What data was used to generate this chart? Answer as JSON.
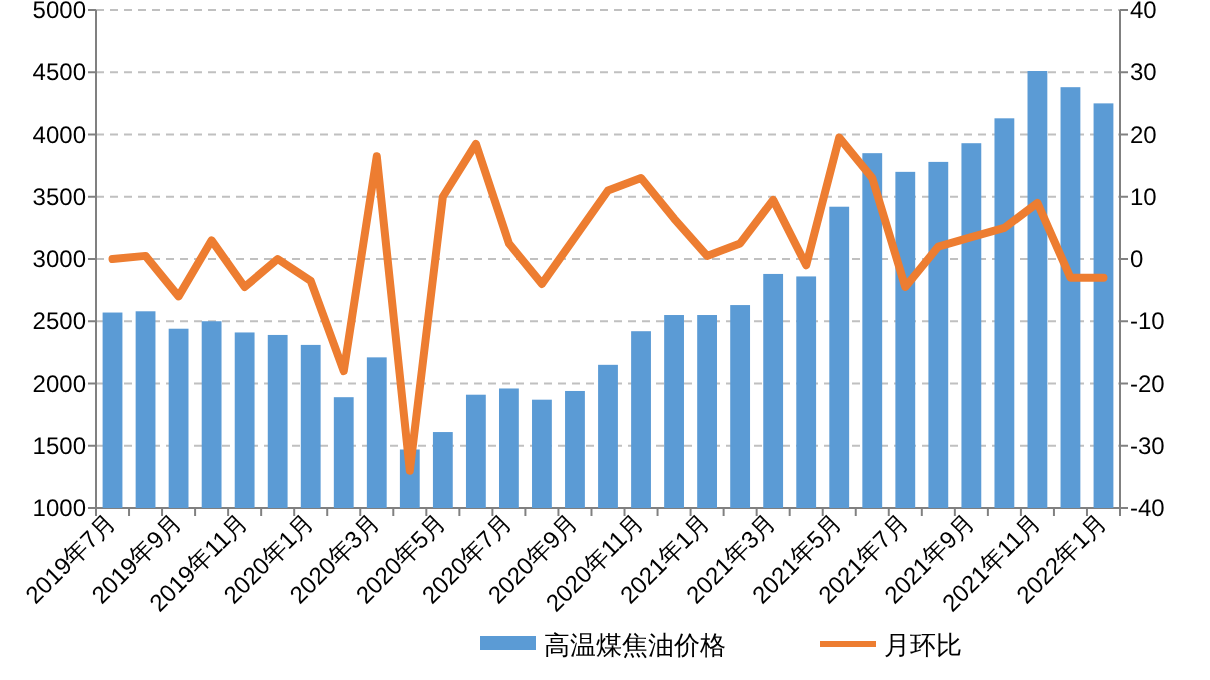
{
  "chart_data": {
    "type": "bar",
    "categories": [
      "2019年7月",
      null,
      "2019年9月",
      null,
      "2019年11月",
      null,
      "2020年1月",
      null,
      "2020年3月",
      null,
      "2020年5月",
      null,
      "2020年7月",
      null,
      "2020年9月",
      null,
      "2020年11月",
      null,
      "2021年1月",
      null,
      "2021年3月",
      null,
      "2021年5月",
      null,
      "2021年7月",
      null,
      "2021年9月",
      null,
      "2021年11月",
      null,
      "2022年1月"
    ],
    "series": [
      {
        "name": "高温煤焦油价格",
        "color": "#5b9bd5",
        "values": [
          2570,
          2580,
          2440,
          2500,
          2410,
          2390,
          2310,
          1890,
          2210,
          1470,
          1610,
          1910,
          1960,
          1870,
          1940,
          2150,
          2420,
          2550,
          2550,
          2630,
          2880,
          2860,
          3420,
          3850,
          3700,
          3780,
          3930,
          4130,
          4510,
          4380,
          4250
        ]
      },
      {
        "name": "月环比",
        "type": "line",
        "axis": "y2",
        "color": "#ed7d31",
        "values": [
          0,
          0.5,
          -6,
          3,
          -4.5,
          0,
          -3.5,
          -18,
          16.5,
          -34,
          10,
          18.5,
          2.5,
          -4,
          3.5,
          11,
          13,
          6.5,
          0.5,
          2.5,
          9.5,
          -1,
          19.5,
          13,
          -4.5,
          2,
          3.5,
          5,
          9,
          -3,
          -3
        ]
      }
    ],
    "ylim": [
      1000,
      5000
    ],
    "yticks": [
      1000,
      1500,
      2000,
      2500,
      3000,
      3500,
      4000,
      4500,
      5000
    ],
    "y2lim": [
      -40,
      40
    ],
    "y2ticks": [
      -40,
      -30,
      -20,
      -10,
      0,
      10,
      20,
      30,
      40
    ],
    "grid": "y",
    "legend": "bottom",
    "marker": "none",
    "line_style": "solid"
  }
}
